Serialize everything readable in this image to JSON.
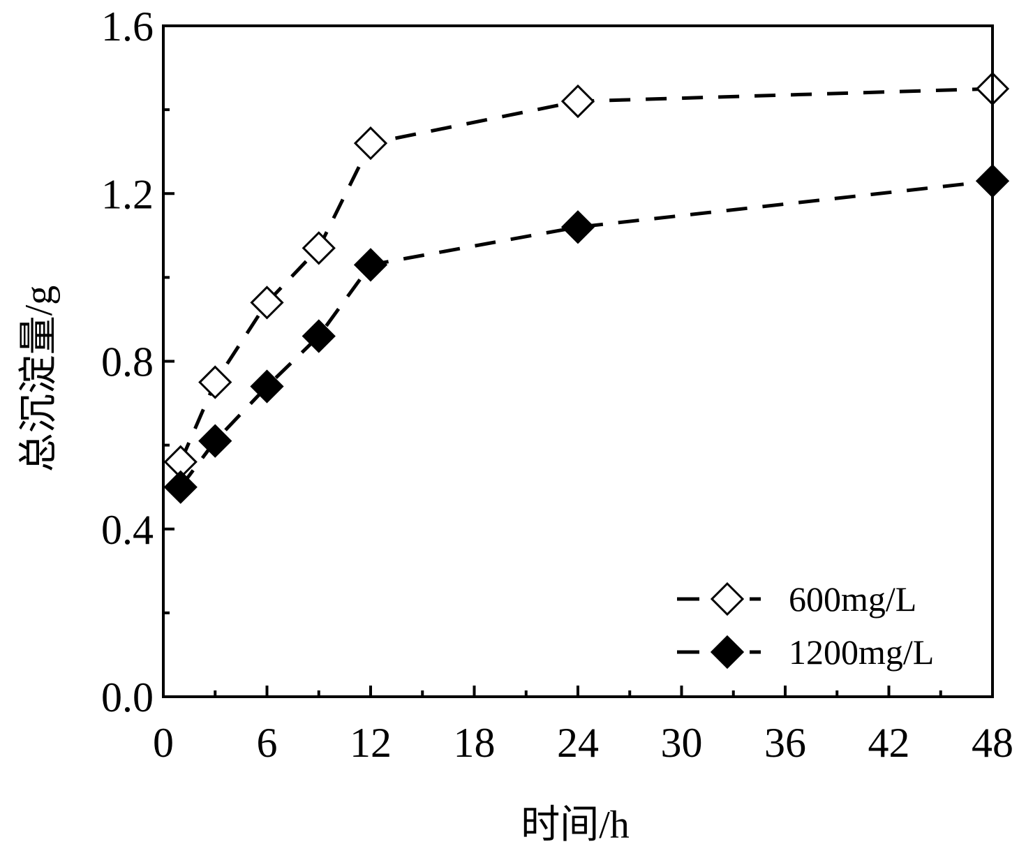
{
  "chart_data": {
    "type": "line",
    "xlabel": "时间/h",
    "ylabel": "总沉淀量/g",
    "xlim": [
      0,
      48
    ],
    "ylim": [
      0.0,
      1.6
    ],
    "xticks": [
      "0",
      "6",
      "12",
      "18",
      "24",
      "30",
      "36",
      "42",
      "48"
    ],
    "yticks": [
      "0.0",
      "0.4",
      "0.8",
      "1.2",
      "1.6"
    ],
    "xtick_values": [
      0,
      6,
      12,
      18,
      24,
      30,
      36,
      42,
      48
    ],
    "ytick_values": [
      0.0,
      0.4,
      0.8,
      1.2,
      1.6
    ],
    "grid": false,
    "legend_position": "bottom-right",
    "series": [
      {
        "name": "600mg/L",
        "marker": "open-diamond",
        "line": "dashed",
        "color": "#000000",
        "x": [
          1,
          3,
          6,
          9,
          12,
          24,
          48
        ],
        "y": [
          0.56,
          0.75,
          0.94,
          1.07,
          1.32,
          1.42,
          1.45
        ]
      },
      {
        "name": "1200mg/L",
        "marker": "filled-diamond",
        "line": "dashed",
        "color": "#000000",
        "x": [
          1,
          3,
          6,
          9,
          12,
          24,
          48
        ],
        "y": [
          0.5,
          0.61,
          0.74,
          0.86,
          1.03,
          1.12,
          1.23
        ]
      }
    ]
  }
}
